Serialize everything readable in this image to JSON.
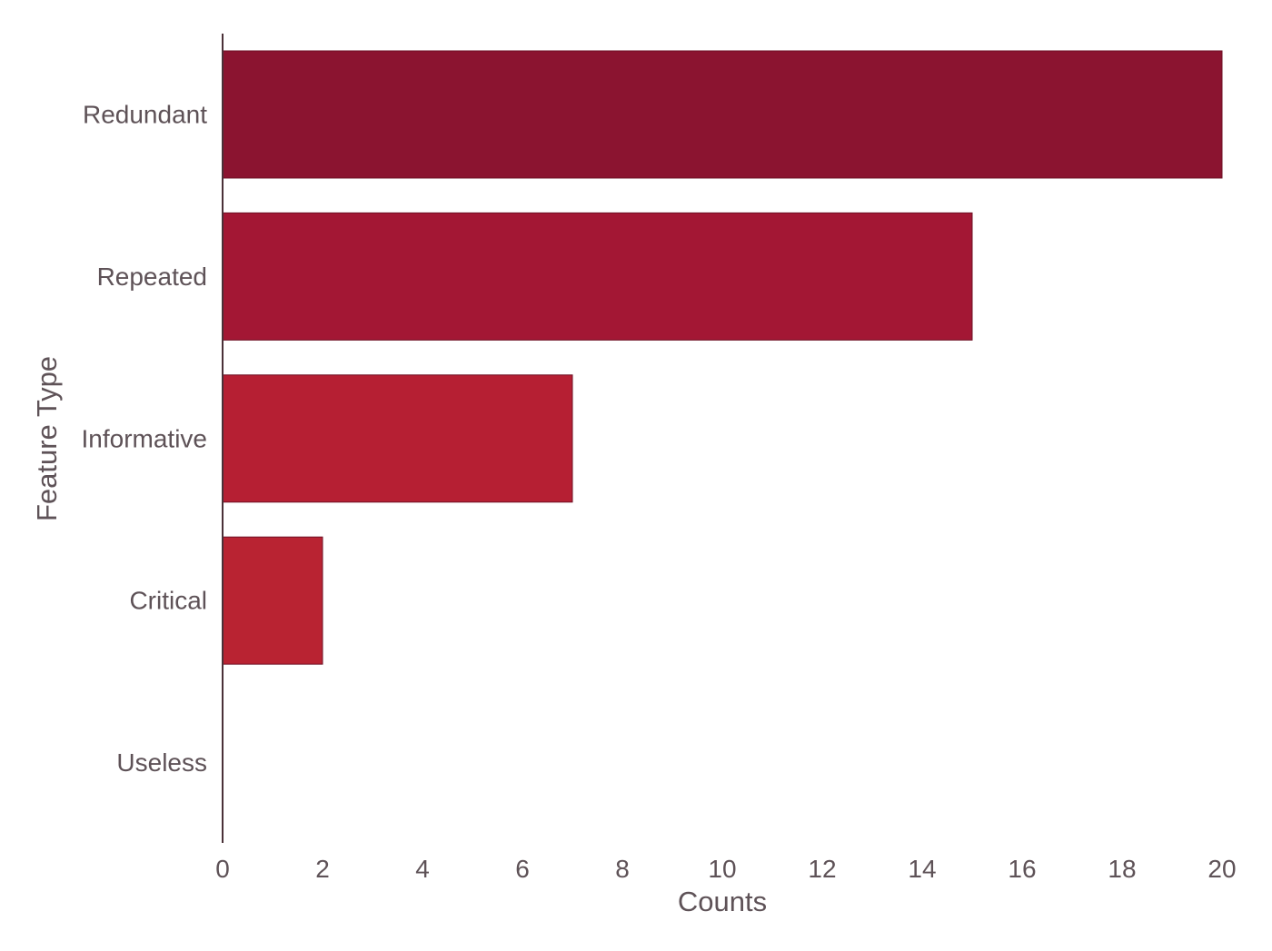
{
  "chart_data": {
    "type": "bar",
    "orientation": "horizontal",
    "categories": [
      "Redundant",
      "Repeated",
      "Informative",
      "Critical",
      "Useless"
    ],
    "values": [
      20,
      15,
      7,
      2,
      0
    ],
    "bar_colors": [
      "#8b1430",
      "#a31734",
      "#b61f33",
      "#b92332",
      "#bd2632"
    ],
    "xlabel": "Counts",
    "ylabel": "Feature Type",
    "xlim": [
      0,
      20
    ],
    "xticks": [
      0,
      2,
      4,
      6,
      8,
      10,
      12,
      14,
      16,
      18,
      20
    ],
    "grid": false,
    "legend": "none"
  },
  "style": {
    "text_color": "#5e5257",
    "axis_color": "#4a3138",
    "bar_edge_color": "#6e1024",
    "background": "#ffffff"
  }
}
